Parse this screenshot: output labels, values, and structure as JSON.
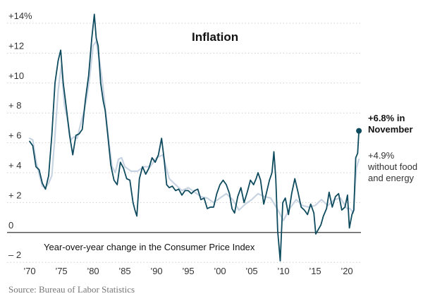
{
  "chart_data": {
    "type": "line",
    "title": "Inflation",
    "subtitle": "Year-over-year change in the Consumer Price Index",
    "source": "Source: Bureau of Labor Statistics",
    "y_ticks": [
      {
        "value": 14,
        "label": "+14%"
      },
      {
        "value": 12,
        "label": "+12"
      },
      {
        "value": 10,
        "label": "+10"
      },
      {
        "value": 8,
        "label": "+ 8"
      },
      {
        "value": 6,
        "label": "+ 6"
      },
      {
        "value": 4,
        "label": "+ 4"
      },
      {
        "value": 2,
        "label": "+ 2"
      },
      {
        "value": 0,
        "label": "0"
      },
      {
        "value": -2,
        "label": "– 2"
      }
    ],
    "x_ticks": [
      {
        "value": 1970,
        "label": "’70"
      },
      {
        "value": 1975,
        "label": "’75"
      },
      {
        "value": 1980,
        "label": "’80"
      },
      {
        "value": 1985,
        "label": "’85"
      },
      {
        "value": 1990,
        "label": "’90"
      },
      {
        "value": 1995,
        "label": "’95"
      },
      {
        "value": 2000,
        "label": "’00"
      },
      {
        "value": 2005,
        "label": "’05"
      },
      {
        "value": 2010,
        "label": "’10"
      },
      {
        "value": 2015,
        "label": "’15"
      },
      {
        "value": 2020,
        "label": "’20"
      }
    ],
    "xlim": [
      1970,
      2022
    ],
    "ylim": [
      -2.5,
      14.5
    ],
    "grid": "horizontal-dotted",
    "annotations": {
      "headline_line1": "+6.8% in",
      "headline_line2": "November",
      "core_line1": "+4.9%",
      "core_line2": "without food",
      "core_line3": "and energy"
    },
    "series": [
      {
        "color": "#0e4b5f",
        "x": [
          1970,
          1970.5,
          1971,
          1971.5,
          1972,
          1972.5,
          1973,
          1973.5,
          1974,
          1974.5,
          1974.9,
          1975.3,
          1975.8,
          1976.3,
          1976.8,
          1977.3,
          1977.8,
          1978.3,
          1978.8,
          1979.3,
          1979.8,
          1980.2,
          1980.5,
          1980.8,
          1981.2,
          1981.6,
          1981.9,
          1982.3,
          1982.8,
          1983.3,
          1983.8,
          1984.3,
          1984.8,
          1985.3,
          1985.8,
          1986.3,
          1986.6,
          1986.9,
          1987.3,
          1987.8,
          1988.3,
          1988.8,
          1989.3,
          1989.8,
          1990.3,
          1990.8,
          1991.2,
          1991.6,
          1992,
          1992.5,
          1993,
          1993.5,
          1994,
          1994.5,
          1995,
          1995.5,
          1996,
          1996.5,
          1997,
          1997.5,
          1998,
          1998.5,
          1999,
          1999.5,
          2000,
          2000.5,
          2001,
          2001.5,
          2001.9,
          2002.3,
          2002.8,
          2003.3,
          2003.8,
          2004.3,
          2004.8,
          2005.3,
          2005.7,
          2006,
          2006.4,
          2006.9,
          2007.3,
          2007.8,
          2008.2,
          2008.5,
          2008.8,
          2009.1,
          2009.5,
          2009.9,
          2010.3,
          2010.8,
          2011.3,
          2011.8,
          2012.3,
          2012.8,
          2013.3,
          2013.8,
          2014.3,
          2014.8,
          2015.1,
          2015.5,
          2015.9,
          2016.3,
          2016.8,
          2017.2,
          2017.7,
          2018.2,
          2018.7,
          2019.2,
          2019.7,
          2020.1,
          2020.4,
          2020.8,
          2021.1,
          2021.4,
          2021.7,
          2021.9
        ],
        "values": [
          6.1,
          5.8,
          4.4,
          4.2,
          3.3,
          2.9,
          3.8,
          6.5,
          10,
          11.5,
          12.2,
          10,
          8.3,
          6.5,
          5.2,
          6.5,
          6.6,
          6.9,
          8.9,
          10.5,
          13,
          14.6,
          13,
          12.5,
          10,
          8.8,
          8.2,
          6.6,
          4.5,
          3.5,
          3.2,
          4.7,
          4.3,
          3.6,
          3.5,
          2.0,
          1.5,
          1.1,
          3.6,
          4.4,
          3.9,
          4.3,
          5.0,
          4.7,
          5.2,
          6.3,
          4.9,
          3.2,
          3.0,
          3.1,
          2.8,
          2.9,
          2.5,
          2.8,
          2.8,
          2.6,
          2.8,
          2.9,
          2.2,
          2.3,
          1.6,
          1.7,
          1.7,
          2.6,
          3.2,
          3.5,
          3.2,
          2.6,
          1.6,
          1.3,
          2.4,
          3.0,
          2.0,
          2.7,
          3.5,
          3.2,
          3.6,
          4.0,
          3.5,
          1.9,
          2.6,
          3.5,
          4.0,
          5.4,
          3.6,
          0.1,
          -1.9,
          2.0,
          2.3,
          1.2,
          2.6,
          3.6,
          2.7,
          1.7,
          1.5,
          1.2,
          1.9,
          1.3,
          -0.1,
          0.2,
          0.5,
          1.1,
          1.6,
          2.7,
          1.7,
          2.4,
          2.6,
          1.5,
          1.7,
          2.5,
          0.3,
          1.2,
          1.5,
          5.0,
          5.3,
          6.8
        ]
      },
      {
        "color": "#c9d4e3",
        "x": [
          1970,
          1970.5,
          1971,
          1971.5,
          1972,
          1972.5,
          1973,
          1973.5,
          1974,
          1974.5,
          1975,
          1975.5,
          1976,
          1976.5,
          1977,
          1977.5,
          1978,
          1978.5,
          1979,
          1979.5,
          1980,
          1980.5,
          1981,
          1981.5,
          1982,
          1982.5,
          1983,
          1983.5,
          1984,
          1984.5,
          1985,
          1986,
          1987,
          1988,
          1989,
          1990,
          1991,
          1992,
          1993,
          1994,
          1995,
          1996,
          1997,
          1998,
          1999,
          2000,
          2001,
          2002,
          2003,
          2004,
          2005,
          2006,
          2007,
          2008,
          2009,
          2010,
          2011,
          2012,
          2013,
          2014,
          2015,
          2016,
          2017,
          2018,
          2019,
          2020,
          2020.5,
          2021,
          2021.5,
          2021.9
        ],
        "values": [
          6.3,
          6.2,
          4.8,
          3.9,
          3.1,
          3.0,
          3.3,
          3.8,
          6.5,
          9.5,
          11.2,
          8.5,
          7.5,
          6.2,
          6.4,
          6.3,
          7.2,
          8.0,
          9.0,
          10.5,
          12.5,
          12.8,
          11.5,
          10.0,
          8.0,
          6.0,
          4.4,
          4.0,
          4.9,
          5.0,
          4.4,
          4.1,
          4.1,
          4.4,
          4.4,
          5.0,
          5.2,
          3.6,
          3.2,
          2.8,
          3.0,
          2.7,
          2.4,
          2.3,
          2.0,
          2.3,
          2.6,
          2.2,
          1.5,
          1.9,
          2.2,
          2.6,
          2.4,
          2.3,
          1.6,
          0.8,
          1.6,
          2.2,
          1.8,
          1.7,
          1.8,
          2.2,
          1.8,
          2.2,
          2.3,
          1.6,
          1.6,
          1.3,
          4.3,
          4.9
        ]
      }
    ]
  }
}
